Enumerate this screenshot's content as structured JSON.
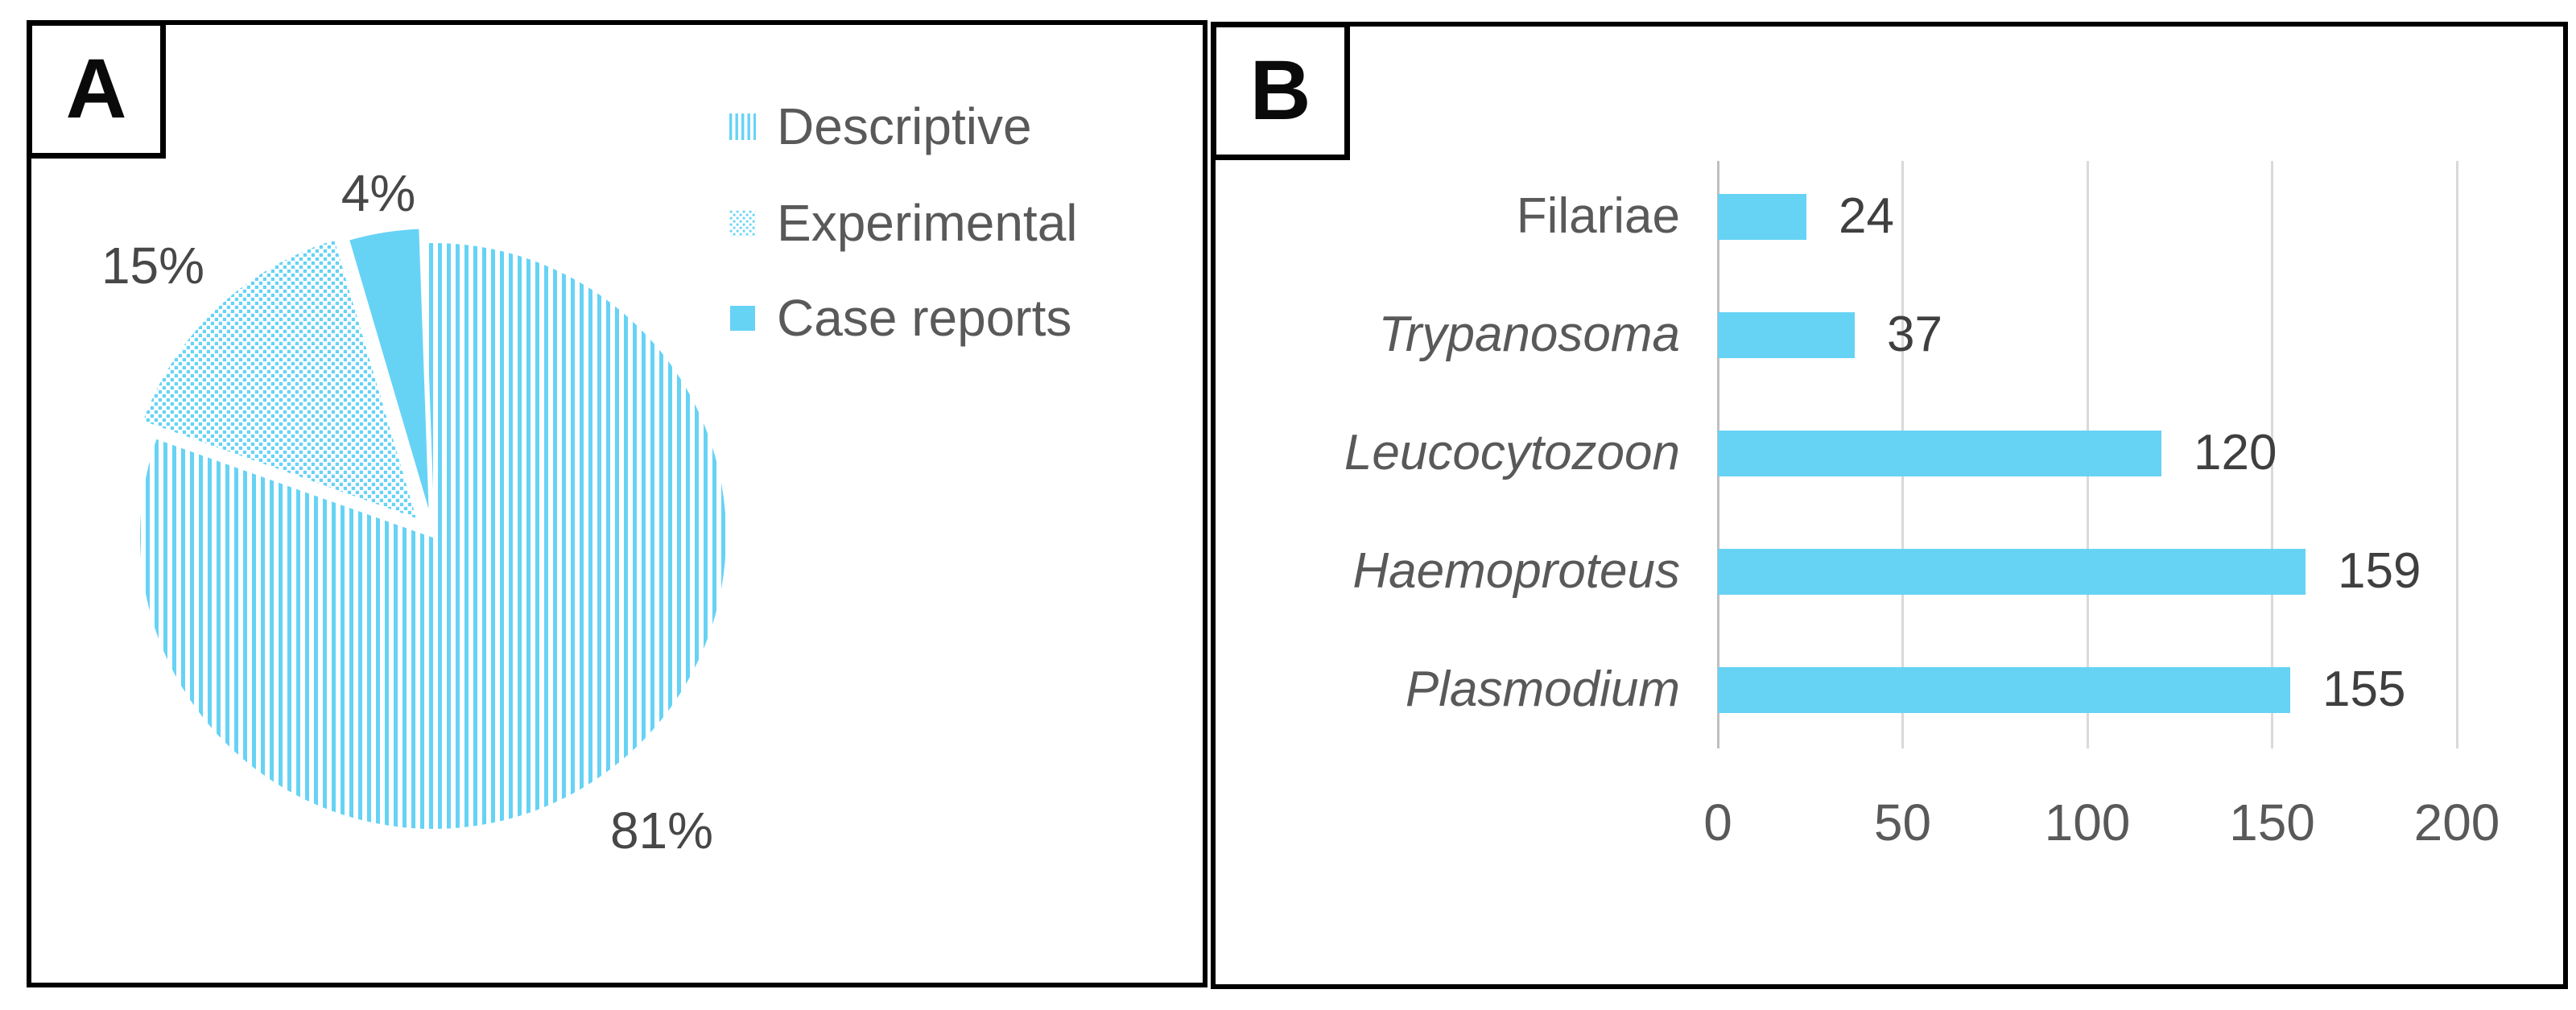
{
  "colors": {
    "accent": "#66D3F5",
    "label_text": "#595959",
    "value_text": "#3F3F3F",
    "grid": "#D9D9D9",
    "axis": "#BFBFBF",
    "border": "#000000"
  },
  "panel_a": {
    "label": "A"
  },
  "panel_b": {
    "label": "B"
  },
  "chart_data": [
    {
      "type": "pie",
      "panel": "A",
      "direction": "clockwise",
      "start_angle_deg": -2,
      "legend_position": "right",
      "slices": [
        {
          "label": "Descriptive",
          "value_pct": 81,
          "fill": "vertical-stripes",
          "data_label": "81%"
        },
        {
          "label": "Experimental",
          "value_pct": 15,
          "fill": "dots",
          "data_label": "15%"
        },
        {
          "label": "Case reports",
          "value_pct": 4,
          "fill": "solid",
          "data_label": "4%"
        }
      ]
    },
    {
      "type": "bar",
      "panel": "B",
      "orientation": "horizontal",
      "categories": [
        "Filariae",
        "Trypanosoma",
        "Leucocytozoon",
        "Haemoproteus",
        "Plasmodium"
      ],
      "values": [
        24,
        37,
        120,
        159,
        155
      ],
      "italic_categories": [
        false,
        true,
        true,
        true,
        true
      ],
      "xlim": [
        0,
        200
      ],
      "xticks": [
        0,
        50,
        100,
        150,
        200
      ],
      "grid": true,
      "bar_color": "#66D3F5"
    }
  ]
}
